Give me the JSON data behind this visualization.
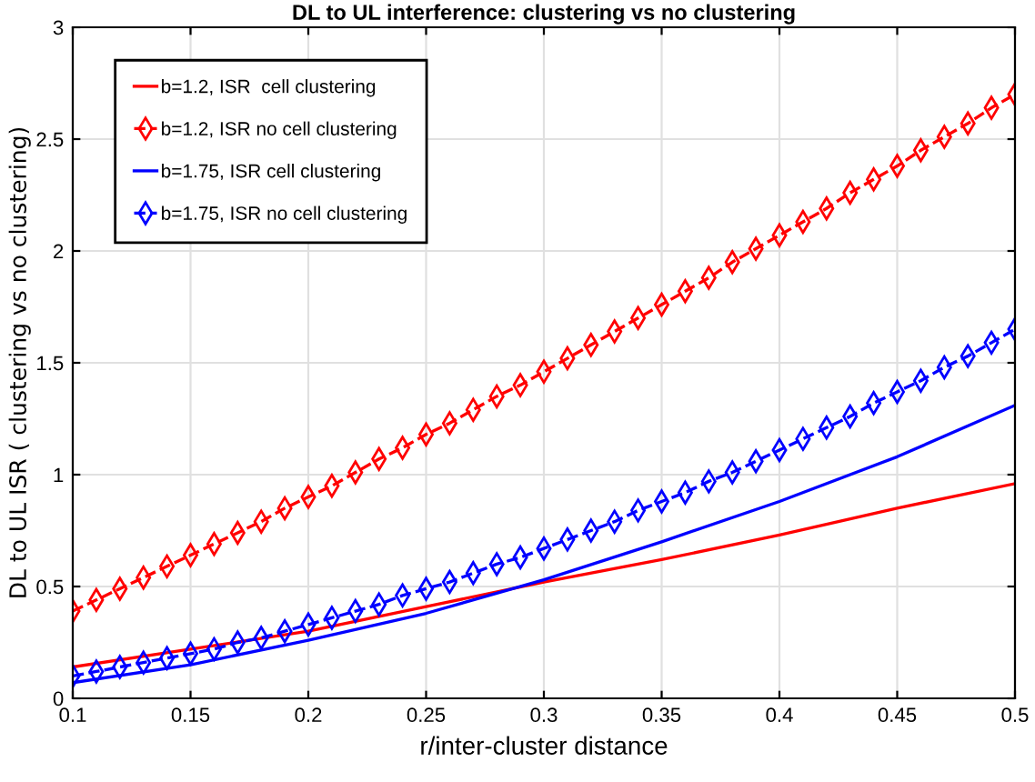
{
  "chart_data": {
    "type": "line",
    "title": "DL to UL interference: clustering vs no clustering",
    "xlabel": "r/inter-cluster distance",
    "ylabel": "DL to UL ISR ( clustering vs no clustering)",
    "xlim": [
      0.1,
      0.5
    ],
    "ylim": [
      0,
      3
    ],
    "xticks": [
      0.1,
      0.15,
      0.2,
      0.25,
      0.3,
      0.35,
      0.4,
      0.45,
      {
        "value": 0.5,
        "label": "0.5"
      }
    ],
    "yticks": [
      0,
      0.5,
      1,
      1.5,
      2,
      2.5,
      3
    ],
    "grid": true,
    "legend": "top left",
    "series": [
      {
        "name": "b=1.2, ISR  cell clustering",
        "color": "#ff0000",
        "line_style": "solid",
        "marker": "none",
        "x": [
          0.1,
          0.15,
          0.2,
          0.25,
          0.3,
          0.35,
          0.4,
          0.45,
          0.5
        ],
        "values": [
          0.14,
          0.22,
          0.3,
          0.41,
          0.52,
          0.62,
          0.73,
          0.85,
          0.96
        ]
      },
      {
        "name": "b=1.2, ISR no cell clustering",
        "color": "#ff0000",
        "line_style": "dashed",
        "marker": "diamond",
        "x": [
          0.1,
          0.11,
          0.12,
          0.13,
          0.14,
          0.15,
          0.16,
          0.17,
          0.18,
          0.19,
          0.2,
          0.21,
          0.22,
          0.23,
          0.24,
          0.25,
          0.26,
          0.27,
          0.28,
          0.29,
          0.3,
          0.31,
          0.32,
          0.33,
          0.34,
          0.35,
          0.36,
          0.37,
          0.38,
          0.39,
          0.4,
          0.41,
          0.42,
          0.43,
          0.44,
          0.45,
          0.46,
          0.47,
          0.48,
          0.49,
          0.5
        ],
        "values": [
          0.39,
          0.44,
          0.49,
          0.54,
          0.59,
          0.64,
          0.69,
          0.74,
          0.79,
          0.85,
          0.9,
          0.95,
          1.01,
          1.07,
          1.12,
          1.18,
          1.23,
          1.29,
          1.35,
          1.4,
          1.46,
          1.52,
          1.58,
          1.64,
          1.7,
          1.76,
          1.82,
          1.88,
          1.95,
          2.01,
          2.07,
          2.13,
          2.19,
          2.26,
          2.32,
          2.38,
          2.45,
          2.51,
          2.57,
          2.64,
          2.7
        ]
      },
      {
        "name": "b=1.75, ISR cell clustering",
        "color": "#0000ff",
        "line_style": "solid",
        "marker": "none",
        "x": [
          0.1,
          0.15,
          0.2,
          0.25,
          0.3,
          0.35,
          0.4,
          0.45,
          0.5
        ],
        "values": [
          0.07,
          0.15,
          0.26,
          0.38,
          0.53,
          0.7,
          0.88,
          1.08,
          1.31
        ]
      },
      {
        "name": "b=1.75, ISR no cell clustering",
        "color": "#0000ff",
        "line_style": "dashed",
        "marker": "diamond",
        "x": [
          0.1,
          0.11,
          0.12,
          0.13,
          0.14,
          0.15,
          0.16,
          0.17,
          0.18,
          0.19,
          0.2,
          0.21,
          0.22,
          0.23,
          0.24,
          0.25,
          0.26,
          0.27,
          0.28,
          0.29,
          0.3,
          0.31,
          0.32,
          0.33,
          0.34,
          0.35,
          0.36,
          0.37,
          0.38,
          0.39,
          0.4,
          0.41,
          0.42,
          0.43,
          0.44,
          0.45,
          0.46,
          0.47,
          0.48,
          0.49,
          0.5
        ],
        "values": [
          0.1,
          0.12,
          0.14,
          0.16,
          0.18,
          0.2,
          0.22,
          0.25,
          0.27,
          0.3,
          0.33,
          0.36,
          0.39,
          0.42,
          0.46,
          0.49,
          0.52,
          0.56,
          0.6,
          0.63,
          0.67,
          0.71,
          0.75,
          0.79,
          0.84,
          0.88,
          0.92,
          0.97,
          1.01,
          1.06,
          1.11,
          1.16,
          1.21,
          1.26,
          1.32,
          1.37,
          1.42,
          1.48,
          1.53,
          1.59,
          1.65
        ]
      }
    ]
  }
}
